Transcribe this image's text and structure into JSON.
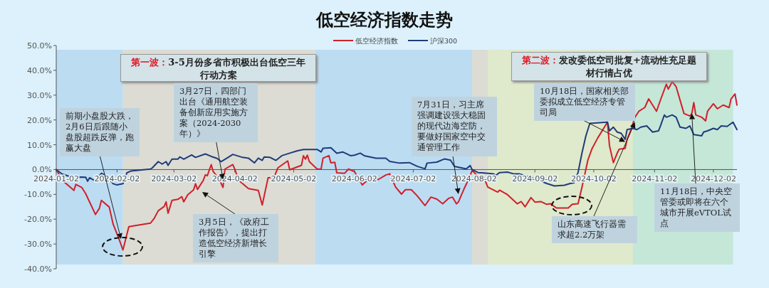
{
  "chart_data": {
    "type": "line",
    "title": "低空经济指数走势",
    "series": [
      {
        "name": "低空经济指数",
        "color": "#d0202a",
        "x": [
          "2024-01-02",
          "2024-01-03",
          "2024-01-05",
          "2024-01-10",
          "2024-01-11",
          "2024-01-12",
          "2024-01-15",
          "2024-01-17",
          "2024-01-18",
          "2024-01-22",
          "2024-01-24",
          "2024-01-25",
          "2024-01-29",
          "2024-01-31",
          "2024-02-03",
          "2024-02-05",
          "2024-02-08",
          "2024-02-19",
          "2024-02-21",
          "2024-02-23",
          "2024-02-26",
          "2024-02-27",
          "2024-02-28",
          "2024-03-01",
          "2024-03-04",
          "2024-03-06",
          "2024-03-07",
          "2024-03-09",
          "2024-03-12",
          "2024-03-13",
          "2024-03-14",
          "2024-03-17",
          "2024-03-18",
          "2024-03-19",
          "2024-03-21",
          "2024-03-22",
          "2024-03-25",
          "2024-03-27",
          "2024-03-28",
          "2024-04-01",
          "2024-04-02",
          "2024-04-04",
          "2024-04-09",
          "2024-04-14",
          "2024-04-16",
          "2024-04-19",
          "2024-04-22",
          "2024-04-24",
          "2024-04-29",
          "2024-04-30",
          "2024-05-06",
          "2024-05-07",
          "2024-05-08",
          "2024-05-09",
          "2024-05-10",
          "2024-05-14",
          "2024-05-16",
          "2024-05-17",
          "2024-05-20",
          "2024-05-21",
          "2024-05-23",
          "2024-05-24",
          "2024-05-28",
          "2024-05-30",
          "2024-06-02",
          "2024-06-06",
          "2024-06-10",
          "2024-06-14",
          "2024-06-18",
          "2024-06-20",
          "2024-06-23",
          "2024-06-26",
          "2024-06-28",
          "2024-07-01",
          "2024-07-04",
          "2024-07-08",
          "2024-07-11",
          "2024-07-14",
          "2024-07-17",
          "2024-07-20",
          "2024-07-22",
          "2024-07-24",
          "2024-07-25",
          "2024-07-28",
          "2024-07-30",
          "2024-08-01",
          "2024-08-04",
          "2024-08-06",
          "2024-08-07",
          "2024-08-09",
          "2024-08-14",
          "2024-08-15",
          "2024-08-19",
          "2024-08-24",
          "2024-08-26",
          "2024-08-28",
          "2024-08-31",
          "2024-09-02",
          "2024-09-05",
          "2024-09-08",
          "2024-09-10",
          "2024-09-13",
          "2024-09-19",
          "2024-09-21",
          "2024-09-24",
          "2024-09-26",
          "2024-09-29",
          "2024-10-01",
          "2024-10-04",
          "2024-10-09",
          "2024-10-10",
          "2024-10-12",
          "2024-10-14",
          "2024-10-15",
          "2024-10-18",
          "2024-10-19",
          "2024-10-21",
          "2024-10-23",
          "2024-10-25",
          "2024-10-28",
          "2024-10-30",
          "2024-11-01",
          "2024-11-03",
          "2024-11-05",
          "2024-11-08",
          "2024-11-09",
          "2024-11-11",
          "2024-11-13",
          "2024-11-17",
          "2024-11-20",
          "2024-11-21",
          "2024-11-22",
          "2024-11-23",
          "2024-11-26",
          "2024-11-28",
          "2024-11-29",
          "2024-12-02",
          "2024-12-04",
          "2024-12-07",
          "2024-12-10",
          "2024-12-11",
          "2024-12-13",
          "2024-12-14"
        ],
        "values": [
          0,
          -1.3,
          -4.3,
          -7.7,
          -8.4,
          -6,
          -7.2,
          -9.7,
          -11.4,
          -18.1,
          -15.6,
          -12.4,
          -15.1,
          -22,
          -28,
          -32.4,
          -23,
          -21.6,
          -19.6,
          -16.6,
          -14.9,
          -13,
          -17.6,
          -12.4,
          -12,
          -10.9,
          -13,
          -10.2,
          -8.2,
          -5.7,
          -8,
          -4.3,
          -2.1,
          -2.5,
          2,
          -0.8,
          -3.8,
          -7.2,
          0.2,
          2,
          0.2,
          -4.3,
          -7.7,
          -8.4,
          -14.3,
          -3.3,
          -3.1,
          0.7,
          3.5,
          -0.1,
          1.7,
          5.6,
          4.2,
          5.8,
          3.2,
          0.2,
          0.2,
          4.6,
          5.6,
          2.7,
          2.9,
          -1.3,
          -1.5,
          0.2,
          -0.8,
          -6.2,
          -3.3,
          -4.1,
          -2.2,
          -1.7,
          -7.1,
          -9.9,
          -8.1,
          -8.1,
          -10.6,
          -14.5,
          -11.1,
          -11.9,
          -13.8,
          -11.6,
          -11.1,
          -13.8,
          -13.1,
          -7.6,
          -4.2,
          -0.4,
          -2.7,
          -4.6,
          -3.2,
          -7.1,
          -9.1,
          -8.3,
          -10.1,
          -13.8,
          -12.9,
          -15,
          -11.3,
          -13.1,
          -12.9,
          -14,
          -13.8,
          -15.5,
          -15.5,
          -14,
          -13.8,
          -7.1,
          3.8,
          8.2,
          12.7,
          19.1,
          9.7,
          2.8,
          6.7,
          8.2,
          8.5,
          12.2,
          16.1,
          21.1,
          23.5,
          25,
          28.5,
          26,
          23.5,
          28,
          34.4,
          32.4,
          35.4,
          33.4,
          22.6,
          21.6,
          22.6,
          27,
          22,
          21.1,
          19.6,
          23.5,
          26.5,
          24.5,
          26,
          25,
          28.5,
          30.5,
          26
        ]
      },
      {
        "name": "沪深300",
        "color": "#1f3b7a",
        "x": [
          "2024-01-02",
          "2024-01-05",
          "2024-01-10",
          "2024-01-15",
          "2024-01-17",
          "2024-01-18",
          "2024-01-19",
          "2024-01-22",
          "2024-01-25",
          "2024-01-28",
          "2024-01-31",
          "2024-02-02",
          "2024-02-05",
          "2024-02-07",
          "2024-02-09",
          "2024-02-19",
          "2024-02-20",
          "2024-02-23",
          "2024-02-25",
          "2024-02-27",
          "2024-02-28",
          "2024-03-01",
          "2024-03-04",
          "2024-03-05",
          "2024-03-07",
          "2024-03-11",
          "2024-03-13",
          "2024-03-18",
          "2024-03-21",
          "2024-03-24",
          "2024-03-26",
          "2024-03-29",
          "2024-04-01",
          "2024-04-06",
          "2024-04-09",
          "2024-04-12",
          "2024-04-14",
          "2024-04-16",
          "2024-04-17",
          "2024-04-20",
          "2024-04-23",
          "2024-04-26",
          "2024-04-30",
          "2024-05-04",
          "2024-05-07",
          "2024-05-10",
          "2024-05-14",
          "2024-05-16",
          "2024-05-17",
          "2024-05-21",
          "2024-05-24",
          "2024-05-27",
          "2024-05-31",
          "2024-06-02",
          "2024-06-05",
          "2024-06-07",
          "2024-06-13",
          "2024-06-18",
          "2024-06-20",
          "2024-06-25",
          "2024-06-30",
          "2024-07-04",
          "2024-07-08",
          "2024-07-09",
          "2024-07-14",
          "2024-07-18",
          "2024-07-21",
          "2024-07-23",
          "2024-07-26",
          "2024-07-29",
          "2024-07-31",
          "2024-08-01",
          "2024-08-04",
          "2024-08-07",
          "2024-08-12",
          "2024-08-13",
          "2024-08-15",
          "2024-08-19",
          "2024-08-22",
          "2024-08-25",
          "2024-08-31",
          "2024-09-05",
          "2024-09-08",
          "2024-09-12",
          "2024-09-17",
          "2024-09-20",
          "2024-09-22",
          "2024-09-24",
          "2024-09-26",
          "2024-09-28",
          "2024-09-30",
          "2024-10-09",
          "2024-10-10",
          "2024-10-12",
          "2024-10-14",
          "2024-10-16",
          "2024-10-18",
          "2024-10-19",
          "2024-10-22",
          "2024-10-24",
          "2024-10-26",
          "2024-10-29",
          "2024-11-01",
          "2024-11-04",
          "2024-11-05",
          "2024-11-07",
          "2024-11-08",
          "2024-11-11",
          "2024-11-13",
          "2024-11-15",
          "2024-11-18",
          "2024-11-20",
          "2024-11-22",
          "2024-11-26",
          "2024-11-27",
          "2024-11-29",
          "2024-12-02",
          "2024-12-04",
          "2024-12-06",
          "2024-12-09",
          "2024-12-12",
          "2024-12-14"
        ],
        "values": [
          0,
          -1.8,
          -3.1,
          -3,
          -3.1,
          -4.7,
          -3.3,
          -4.7,
          -1.5,
          -2.8,
          -5.7,
          -6.2,
          -5.7,
          -1.3,
          -0.6,
          0.2,
          0.7,
          3.2,
          2.2,
          3.2,
          1.7,
          4.2,
          4.2,
          5.1,
          4.2,
          5.9,
          4.9,
          6.3,
          5.3,
          4.5,
          3.2,
          4.6,
          6.1,
          4.9,
          4.6,
          2.7,
          4.6,
          3.7,
          5.1,
          4.9,
          3.7,
          5.6,
          6.6,
          7.6,
          8.1,
          8.1,
          8.1,
          7.1,
          8.6,
          8.8,
          6.6,
          7.1,
          5.6,
          5.8,
          6.6,
          5.6,
          4.6,
          4.6,
          3.3,
          2.6,
          2.8,
          1.3,
          0.3,
          2.6,
          3,
          4.3,
          3.8,
          1.3,
          0.8,
          0.3,
          1.6,
          0,
          -1.2,
          -1.4,
          -1.7,
          -2.4,
          -1.2,
          -1,
          -1.7,
          -1.7,
          -3.2,
          -4.6,
          -5.6,
          -6.6,
          -6.3,
          -5.6,
          -5.3,
          -1.2,
          6.7,
          13.6,
          18.6,
          19.1,
          15.6,
          17.1,
          15.1,
          14.6,
          12.2,
          16.1,
          16.6,
          16.1,
          17.1,
          17.6,
          15.1,
          15.6,
          17.6,
          22,
          21.1,
          22,
          21.1,
          17.1,
          16.6,
          17.6,
          14.1,
          13.6,
          15.1,
          15.6,
          16.6,
          16.1,
          17.6,
          17.4,
          19.1,
          16.1
        ]
      }
    ],
    "xlim": [
      "2024-01-02",
      "2024-12-14"
    ],
    "xticks": [
      "2024-01-02",
      "2024-02-02",
      "2024-03-02",
      "2024-04-02",
      "2024-05-02",
      "2024-06-02",
      "2024-07-02",
      "2024-08-02",
      "2024-09-02",
      "2024-10-02",
      "2024-11-02",
      "2024-12-02"
    ],
    "ylim": [
      -40,
      50
    ],
    "yticks": [
      {
        "value": 50,
        "label": "50.0%"
      },
      {
        "value": 40,
        "label": "40.0%"
      },
      {
        "value": 30,
        "label": "30.0%"
      },
      {
        "value": 20,
        "label": "20.0%"
      },
      {
        "value": 10,
        "label": "10.0%"
      },
      {
        "value": 0,
        "label": "0.0%"
      },
      {
        "value": -10,
        "label": "-10.0%"
      },
      {
        "value": -20,
        "label": "-20.0%"
      },
      {
        "value": -30,
        "label": "-30.0%"
      },
      {
        "value": -40,
        "label": "-40.0%"
      }
    ],
    "bands": [
      {
        "axis": "x",
        "from": "2024-01-02",
        "to": "2024-02-05",
        "color": "#bcdcf2"
      },
      {
        "axis": "x",
        "from": "2024-02-05",
        "to": "2024-05-13",
        "color": "#dcdcd4"
      },
      {
        "axis": "x",
        "from": "2024-05-13",
        "to": "2024-08-01",
        "color": "#bcdcf2"
      },
      {
        "axis": "x",
        "from": "2024-08-01",
        "to": "2024-08-09",
        "color": "#dcdcd4"
      },
      {
        "axis": "x",
        "from": "2024-08-09",
        "to": "2024-10-22",
        "color": "#dfe9cb"
      },
      {
        "axis": "x",
        "from": "2024-10-22",
        "to": "2024-12-12",
        "color": "#c5e7d8"
      }
    ],
    "annotations": [
      "第一波：3-5月份多省市积极出台低空三年行动方案",
      "第二波：发改委低空司批复+流动性充足题材行情占优",
      {
        "text": "前期小盘股大跌，2月6日后跟随小盘股超跌反弹，跑赢大盘",
        "x": "2024-02-04",
        "y": -28
      },
      {
        "text": "3月27日，四部门出台《通用航空装备创新应用实施方案（2024-2030年）》",
        "x": "2024-03-27",
        "y": -4
      },
      "3月5日，《政府工作报告》，提出打造低空经济新增长引擎",
      {
        "text": "7月31日，习主席强调建设强大稳固的现代边海空防，要做好国家空中交通管理工作",
        "x": "2024-07-25",
        "y": -9.9
      },
      {
        "text": "10月18日，国家相关部委拟成立低空经济专管司局",
        "x": "2024-10-18",
        "y": 11.2
      },
      {
        "text": "山东高速飞行器需求超2.2万架",
        "x": "2024-10-23",
        "y": 19.1
      },
      {
        "text": "11月18日，中央空管委或即将在六个城市开展eVTOL试点",
        "x": "2024-11-21",
        "y": 22.6
      }
    ],
    "legend": "top",
    "grid": false,
    "line_style": "solid",
    "marker": "none"
  }
}
